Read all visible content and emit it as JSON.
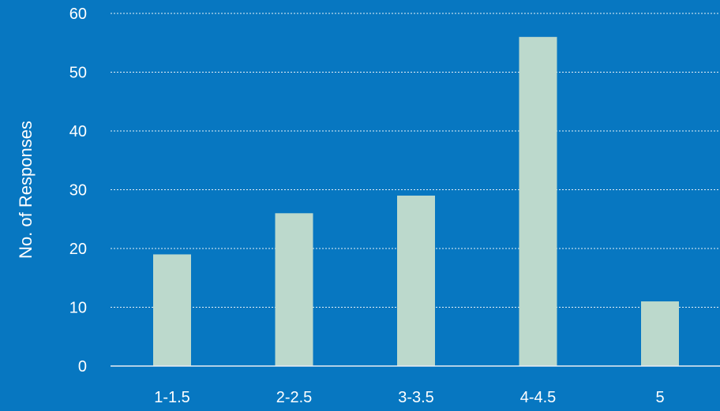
{
  "chart_data": {
    "type": "bar",
    "categories": [
      "1-1.5",
      "2-2.5",
      "3-3.5",
      "4-4.5",
      "5"
    ],
    "values": [
      19,
      26,
      29,
      56,
      11
    ],
    "ylabel": "No. of Responses",
    "xlabel": "",
    "ylim": [
      0,
      60
    ],
    "yticks": [
      "0",
      "10",
      "20",
      "30",
      "40",
      "50",
      "60"
    ],
    "grid": true,
    "legend": "none",
    "colors": {
      "background": "#0777c1",
      "bar": "#bcd9cc",
      "text": "#ffffff"
    }
  }
}
